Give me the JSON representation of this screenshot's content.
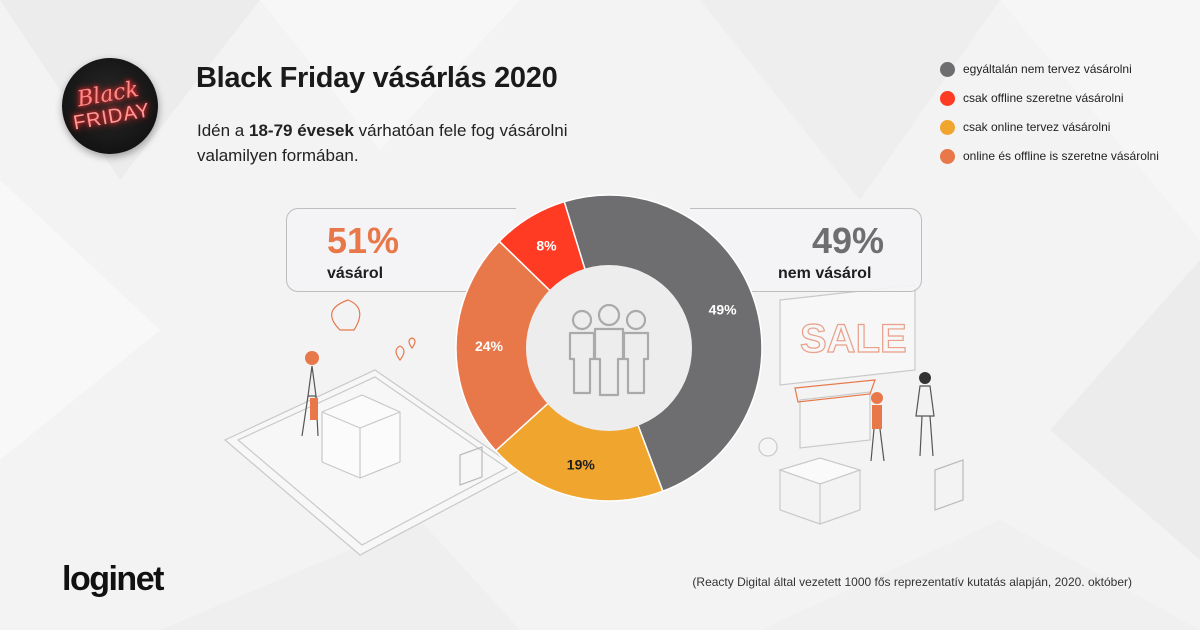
{
  "header": {
    "title": "Black Friday vásárlás 2020",
    "subtitle_pre": "Idén a ",
    "subtitle_bold": "18-79 évesek",
    "subtitle_post": " várhatóan fele fog vásárolni valamilyen formában."
  },
  "badge": {
    "line1": "Black",
    "line2": "FRIDAY"
  },
  "colors": {
    "gray": "#6e6e70",
    "red": "#ff3b24",
    "yellow": "#f0a52e",
    "orange": "#e8784a",
    "inner": "#ededee",
    "icon": "#aaaaaa"
  },
  "summary": {
    "left": {
      "pct": "51%",
      "label": "vásárol",
      "color": "#e8784a"
    },
    "right": {
      "pct": "49%",
      "label": "nem vásárol",
      "color": "#6e6e70"
    }
  },
  "chart_data": {
    "type": "pie",
    "donut": true,
    "title": "Black Friday vásárlás 2020",
    "legend_position": "top-right",
    "series": [
      {
        "name": "egyáltalán nem tervez vásárolni",
        "value": 49,
        "label": "49%",
        "color": "#6e6e70"
      },
      {
        "name": "csak online tervez vásárolni",
        "value": 19,
        "label": "19%",
        "color": "#f0a52e"
      },
      {
        "name": "online és offline is szeretne vásárolni",
        "value": 24,
        "label": "24%",
        "color": "#e8784a"
      },
      {
        "name": "csak offline szeretne vásárolni",
        "value": 8,
        "label": "8%",
        "color": "#ff3b24"
      }
    ]
  },
  "legend": [
    {
      "label": "egyáltalán nem tervez vásárolni",
      "color": "#6e6e70"
    },
    {
      "label": "csak offline szeretne vásárolni",
      "color": "#ff3b24"
    },
    {
      "label": "csak online tervez vásárolni",
      "color": "#f0a52e"
    },
    {
      "label": "online és offline is szeretne vásárolni",
      "color": "#e8784a"
    }
  ],
  "footer": {
    "brand": "loginet",
    "note": "(Reacty Digital által vezetett 1000 fős reprezentatív kutatás alapján, 2020. október)"
  }
}
